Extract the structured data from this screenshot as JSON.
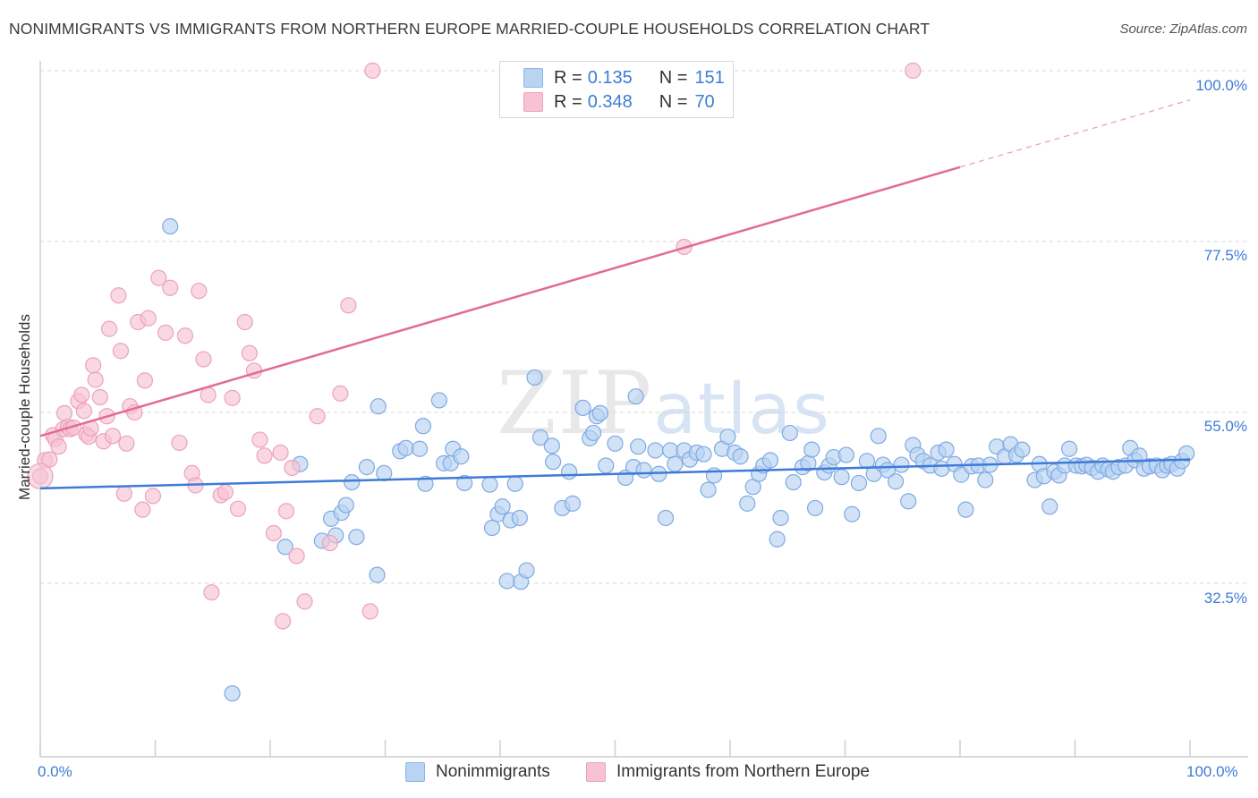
{
  "header": {
    "title": "NONIMMIGRANTS VS IMMIGRANTS FROM NORTHERN EUROPE MARRIED-COUPLE HOUSEHOLDS CORRELATION CHART",
    "source": "Source: ZipAtlas.com"
  },
  "legend": {
    "blue": {
      "r_label": "R =",
      "r_value": "0.135",
      "n_label": "N =",
      "n_value": "151"
    },
    "pink": {
      "r_label": "R =",
      "r_value": "0.348",
      "n_label": "N =",
      "n_value": "70"
    }
  },
  "bottom_legend": {
    "blue_label": "Nonimmigrants",
    "pink_label": "Immigrants from Northern Europe"
  },
  "axes": {
    "ylabel": "Married-couple Households",
    "x_min_label": "0.0%",
    "x_max_label": "100.0%",
    "y_ticks": [
      "100.0%",
      "77.5%",
      "55.0%",
      "32.5%"
    ]
  },
  "watermark": {
    "zip": "ZIP",
    "atlas": "atlas"
  },
  "colors": {
    "blue": "#3f7bd6",
    "blue_fill": "#b9d3f3",
    "pink": "#e36b95",
    "pink_fill": "#f7c3d3",
    "grid": "#d7d7d7"
  },
  "chart_data": {
    "type": "scatter",
    "title": "NONIMMIGRANTS VS IMMIGRANTS FROM NORTHERN EUROPE MARRIED-COUPLE HOUSEHOLDS CORRELATION CHART",
    "xlabel": "",
    "ylabel": "Married-couple Households",
    "xlim": [
      0,
      100
    ],
    "ylim": [
      10,
      100
    ],
    "y_gridlines": [
      32.5,
      55.0,
      77.5,
      100.0
    ],
    "series": [
      {
        "name": "Nonimmigrants",
        "color": "#3f7bd6",
        "r": 0.135,
        "n": 151,
        "trend": {
          "x0": 0,
          "y0": 45.0,
          "x1": 100,
          "y1": 48.8,
          "dashed_from": 100
        },
        "points": [
          [
            11.3,
            79.5
          ],
          [
            16.7,
            18.0
          ],
          [
            22.6,
            48.2
          ],
          [
            21.3,
            37.3
          ],
          [
            24.5,
            38.1
          ],
          [
            25.3,
            41.0
          ],
          [
            25.7,
            38.8
          ],
          [
            26.2,
            41.8
          ],
          [
            26.6,
            42.8
          ],
          [
            27.1,
            45.8
          ],
          [
            27.5,
            38.6
          ],
          [
            28.4,
            47.8
          ],
          [
            29.3,
            33.6
          ],
          [
            29.9,
            47.0
          ],
          [
            29.4,
            55.8
          ],
          [
            31.3,
            49.9
          ],
          [
            31.8,
            50.3
          ],
          [
            33.0,
            50.2
          ],
          [
            33.3,
            53.2
          ],
          [
            34.7,
            56.6
          ],
          [
            33.5,
            45.6
          ],
          [
            35.1,
            48.3
          ],
          [
            35.9,
            50.2
          ],
          [
            35.7,
            48.3
          ],
          [
            36.6,
            49.2
          ],
          [
            36.9,
            45.7
          ],
          [
            39.1,
            45.5
          ],
          [
            39.8,
            41.6
          ],
          [
            39.3,
            39.8
          ],
          [
            40.2,
            42.6
          ],
          [
            40.9,
            40.8
          ],
          [
            41.3,
            45.6
          ],
          [
            40.6,
            32.8
          ],
          [
            41.8,
            32.7
          ],
          [
            42.3,
            34.2
          ],
          [
            41.7,
            41.1
          ],
          [
            43.0,
            59.6
          ],
          [
            43.5,
            51.7
          ],
          [
            44.6,
            48.5
          ],
          [
            44.5,
            50.6
          ],
          [
            45.4,
            42.4
          ],
          [
            46.0,
            47.2
          ],
          [
            46.3,
            43.0
          ],
          [
            47.2,
            55.6
          ],
          [
            47.8,
            51.6
          ],
          [
            48.1,
            52.3
          ],
          [
            48.4,
            54.5
          ],
          [
            49.2,
            48.0
          ],
          [
            50.0,
            50.9
          ],
          [
            50.9,
            46.4
          ],
          [
            51.6,
            47.8
          ],
          [
            52.0,
            50.5
          ],
          [
            51.8,
            57.1
          ],
          [
            52.5,
            47.4
          ],
          [
            53.5,
            50.0
          ],
          [
            53.8,
            46.9
          ],
          [
            54.4,
            41.1
          ],
          [
            54.8,
            50.0
          ],
          [
            55.2,
            48.2
          ],
          [
            56.0,
            50.0
          ],
          [
            56.5,
            48.8
          ],
          [
            57.1,
            49.7
          ],
          [
            57.7,
            49.5
          ],
          [
            58.1,
            44.8
          ],
          [
            58.6,
            46.7
          ],
          [
            59.3,
            50.2
          ],
          [
            59.8,
            51.8
          ],
          [
            60.4,
            49.7
          ],
          [
            60.9,
            49.2
          ],
          [
            61.5,
            43.0
          ],
          [
            62.0,
            45.2
          ],
          [
            62.5,
            46.9
          ],
          [
            62.9,
            48.0
          ],
          [
            63.5,
            48.7
          ],
          [
            64.1,
            38.3
          ],
          [
            64.4,
            41.1
          ],
          [
            65.2,
            52.3
          ],
          [
            65.5,
            45.8
          ],
          [
            66.3,
            47.8
          ],
          [
            66.8,
            48.3
          ],
          [
            67.1,
            50.1
          ],
          [
            67.4,
            42.4
          ],
          [
            68.2,
            47.1
          ],
          [
            68.6,
            48.0
          ],
          [
            69.0,
            49.1
          ],
          [
            69.7,
            46.5
          ],
          [
            70.1,
            49.4
          ],
          [
            70.6,
            41.6
          ],
          [
            71.2,
            45.7
          ],
          [
            71.9,
            48.6
          ],
          [
            72.5,
            46.9
          ],
          [
            72.9,
            51.9
          ],
          [
            73.3,
            48.1
          ],
          [
            73.7,
            47.4
          ],
          [
            74.4,
            45.9
          ],
          [
            74.9,
            48.1
          ],
          [
            75.5,
            43.3
          ],
          [
            75.9,
            50.7
          ],
          [
            76.3,
            49.4
          ],
          [
            76.8,
            48.6
          ],
          [
            77.4,
            48.0
          ],
          [
            78.1,
            49.7
          ],
          [
            78.4,
            47.6
          ],
          [
            78.8,
            50.1
          ],
          [
            79.5,
            48.2
          ],
          [
            80.1,
            46.8
          ],
          [
            80.5,
            42.2
          ],
          [
            81.0,
            47.9
          ],
          [
            81.6,
            48.0
          ],
          [
            82.2,
            46.1
          ],
          [
            82.6,
            48.1
          ],
          [
            83.2,
            50.5
          ],
          [
            83.9,
            49.2
          ],
          [
            84.4,
            50.8
          ],
          [
            84.9,
            49.4
          ],
          [
            85.4,
            50.1
          ],
          [
            86.5,
            46.1
          ],
          [
            86.9,
            48.2
          ],
          [
            87.3,
            46.6
          ],
          [
            87.8,
            42.6
          ],
          [
            88.2,
            47.2
          ],
          [
            88.6,
            46.7
          ],
          [
            89.1,
            48.0
          ],
          [
            89.5,
            50.2
          ],
          [
            90.1,
            48.0
          ],
          [
            90.6,
            47.9
          ],
          [
            91.0,
            48.1
          ],
          [
            91.5,
            47.7
          ],
          [
            92.0,
            47.2
          ],
          [
            92.4,
            48.0
          ],
          [
            92.9,
            47.5
          ],
          [
            93.3,
            47.2
          ],
          [
            93.8,
            47.8
          ],
          [
            94.4,
            48.0
          ],
          [
            94.8,
            50.3
          ],
          [
            95.2,
            48.7
          ],
          [
            95.6,
            49.3
          ],
          [
            96.0,
            47.6
          ],
          [
            96.5,
            47.9
          ],
          [
            97.1,
            48.0
          ],
          [
            97.6,
            47.4
          ],
          [
            98.0,
            48.0
          ],
          [
            98.4,
            48.2
          ],
          [
            98.9,
            47.6
          ],
          [
            99.3,
            48.6
          ],
          [
            99.7,
            49.6
          ],
          [
            48.7,
            54.9
          ]
        ]
      },
      {
        "name": "Immigrants from Northern Europe",
        "color": "#e36b95",
        "r": 0.348,
        "n": 70,
        "trend": {
          "x0": 0,
          "y0": 51.9,
          "x1": 80,
          "y1": 87.3,
          "dashed_to": 100
        },
        "points": [
          [
            0.0,
            46.6
          ],
          [
            0.4,
            48.7
          ],
          [
            0.8,
            48.8
          ],
          [
            1.1,
            52.0
          ],
          [
            1.3,
            51.5
          ],
          [
            1.6,
            50.5
          ],
          [
            2.0,
            52.8
          ],
          [
            2.1,
            54.9
          ],
          [
            2.4,
            53.1
          ],
          [
            2.6,
            52.8
          ],
          [
            2.9,
            53.0
          ],
          [
            3.3,
            56.5
          ],
          [
            3.6,
            57.3
          ],
          [
            3.8,
            55.2
          ],
          [
            4.0,
            52.1
          ],
          [
            4.2,
            51.8
          ],
          [
            4.4,
            52.9
          ],
          [
            4.6,
            61.2
          ],
          [
            4.8,
            59.3
          ],
          [
            5.2,
            57.0
          ],
          [
            5.5,
            51.2
          ],
          [
            5.8,
            54.5
          ],
          [
            6.0,
            66.0
          ],
          [
            6.3,
            51.9
          ],
          [
            6.8,
            70.4
          ],
          [
            7.0,
            63.1
          ],
          [
            7.5,
            50.9
          ],
          [
            7.8,
            55.8
          ],
          [
            7.3,
            44.3
          ],
          [
            8.2,
            55.0
          ],
          [
            8.5,
            66.9
          ],
          [
            8.9,
            42.2
          ],
          [
            9.1,
            59.2
          ],
          [
            9.4,
            67.4
          ],
          [
            9.8,
            44.0
          ],
          [
            10.3,
            72.7
          ],
          [
            10.9,
            65.5
          ],
          [
            11.3,
            71.4
          ],
          [
            12.1,
            51.0
          ],
          [
            12.6,
            65.1
          ],
          [
            13.2,
            47.0
          ],
          [
            13.5,
            45.4
          ],
          [
            13.8,
            71.0
          ],
          [
            14.2,
            62.0
          ],
          [
            14.6,
            57.3
          ],
          [
            14.9,
            31.3
          ],
          [
            15.7,
            44.1
          ],
          [
            16.1,
            44.5
          ],
          [
            16.7,
            56.9
          ],
          [
            17.2,
            42.3
          ],
          [
            17.8,
            66.9
          ],
          [
            18.2,
            62.8
          ],
          [
            18.6,
            60.5
          ],
          [
            19.1,
            51.4
          ],
          [
            19.5,
            49.3
          ],
          [
            20.3,
            39.1
          ],
          [
            20.9,
            49.7
          ],
          [
            21.1,
            27.5
          ],
          [
            21.4,
            42.0
          ],
          [
            21.9,
            47.7
          ],
          [
            22.3,
            36.1
          ],
          [
            23.0,
            30.1
          ],
          [
            24.1,
            54.5
          ],
          [
            25.2,
            37.8
          ],
          [
            26.1,
            57.5
          ],
          [
            26.8,
            69.1
          ],
          [
            28.7,
            28.8
          ],
          [
            28.9,
            100.0
          ],
          [
            56.0,
            76.8
          ],
          [
            75.9,
            100.0
          ]
        ]
      }
    ]
  }
}
